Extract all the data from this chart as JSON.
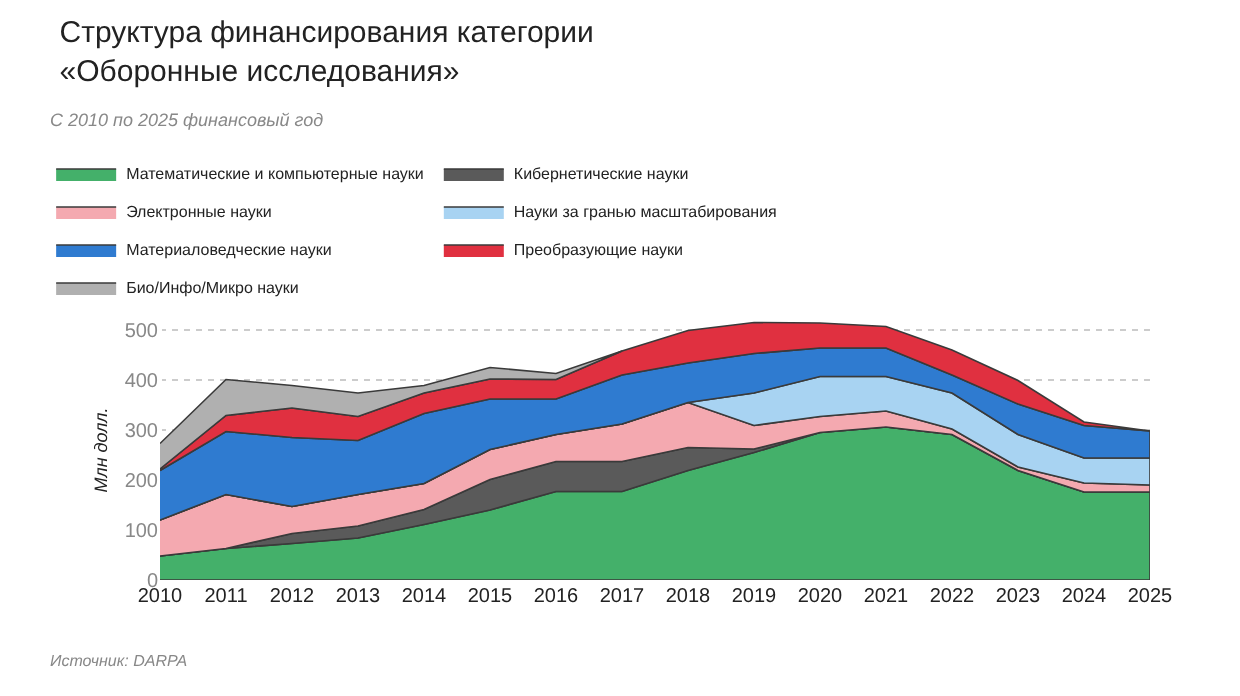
{
  "chart_data": {
    "type": "area",
    "stacked": true,
    "title": "Структура финансирования категории\n«Оборонные исследования»",
    "subtitle": "С 2010 по 2025 финансовый год",
    "ylabel": "Млн долл.",
    "annotations": [
      "Источник: DARPA"
    ],
    "categories": [
      "2010",
      "2011",
      "2012",
      "2013",
      "2014",
      "2015",
      "2016",
      "2017",
      "2018",
      "2019",
      "2020",
      "2021",
      "2022",
      "2023",
      "2024",
      "2025"
    ],
    "ylim": [
      0,
      520
    ],
    "yticks": [
      0,
      100,
      200,
      300,
      400,
      500
    ],
    "grid": "y",
    "legend": "top",
    "series": [
      {
        "name": "Математические и компьютерные науки",
        "color": "#44b06a",
        "values": [
          48,
          63,
          73,
          84,
          111,
          140,
          177,
          177,
          219,
          255,
          295,
          306,
          291,
          219,
          176,
          176
        ]
      },
      {
        "name": "Кибернетические науки",
        "color": "#5a5a5a",
        "values": [
          0,
          0,
          20,
          24,
          30,
          61,
          60,
          60,
          46,
          7,
          0,
          0,
          0,
          0,
          0,
          0
        ]
      },
      {
        "name": "Электронные науки",
        "color": "#f4a9b0",
        "values": [
          72,
          108,
          54,
          63,
          52,
          60,
          54,
          75,
          90,
          47,
          32,
          32,
          11,
          7,
          18,
          14
        ]
      },
      {
        "name": "Науки за гранью масштабирования",
        "color": "#a8d3f2",
        "values": [
          0,
          0,
          0,
          0,
          0,
          0,
          0,
          0,
          0,
          65,
          80,
          69,
          72,
          65,
          50,
          54
        ]
      },
      {
        "name": "Материаловедческие науки",
        "color": "#2f7bd0",
        "values": [
          99,
          126,
          138,
          108,
          140,
          101,
          71,
          98,
          79,
          79,
          57,
          57,
          36,
          61,
          65,
          54
        ]
      },
      {
        "name": "Преобразующие науки",
        "color": "#e03040",
        "values": [
          3,
          32,
          59,
          48,
          41,
          40,
          39,
          48,
          65,
          62,
          50,
          43,
          50,
          47,
          7,
          0
        ]
      },
      {
        "name": "Био/Инфо/Микро науки",
        "color": "#b0b0b0",
        "values": [
          51,
          72,
          45,
          47,
          15,
          23,
          12,
          0,
          null,
          null,
          null,
          null,
          null,
          null,
          null,
          null
        ]
      }
    ]
  }
}
